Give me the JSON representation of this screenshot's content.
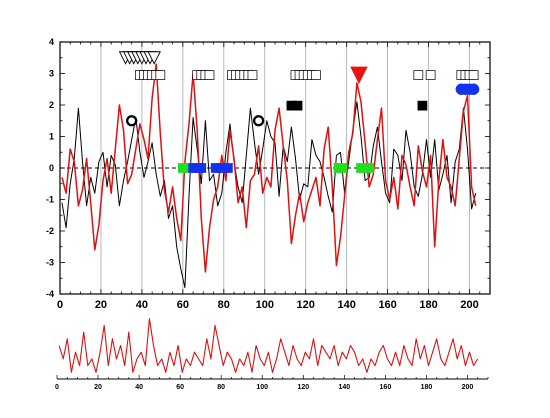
{
  "chart_data": [
    {
      "type": "line",
      "xlim": [
        0,
        210
      ],
      "ylim": [
        -4,
        4
      ],
      "x_ticks": [
        0,
        20,
        40,
        60,
        80,
        100,
        120,
        140,
        160,
        180,
        200
      ],
      "y_ticks": [
        -4,
        -3,
        -2,
        -1,
        0,
        1,
        2,
        3,
        4
      ],
      "vertical_gridlines_at": [
        20,
        40,
        60,
        80,
        100,
        120,
        140,
        160,
        180,
        200
      ],
      "zero_line": "dashed",
      "series": [
        {
          "color": "#000000",
          "x": [
            1,
            3,
            5,
            7,
            9,
            11,
            13,
            15,
            17,
            19,
            21,
            23,
            25,
            27,
            29,
            31,
            33,
            35,
            37,
            39,
            41,
            43,
            45,
            47,
            49,
            51,
            53,
            55,
            57,
            59,
            61,
            63,
            65,
            67,
            69,
            71,
            73,
            75,
            77,
            79,
            81,
            83,
            85,
            87,
            89,
            91,
            93,
            95,
            97,
            99,
            101,
            103,
            105,
            107,
            109,
            111,
            113,
            115,
            117,
            119,
            121,
            123,
            125,
            127,
            129,
            131,
            133,
            135,
            137,
            139,
            141,
            143,
            145,
            147,
            149,
            151,
            153,
            155,
            157,
            159,
            161,
            163,
            165,
            167,
            169,
            171,
            173,
            175,
            177,
            179,
            181,
            183,
            185,
            187,
            189,
            191,
            193,
            195,
            197,
            199,
            201,
            203
          ],
          "y": [
            -1.1,
            -1.9,
            -0.5,
            0.3,
            1.9,
            0.2,
            -1.2,
            -0.3,
            -0.8,
            0.2,
            0.5,
            -0.6,
            0.4,
            0.1,
            -1.2,
            -0.4,
            0.2,
            0.9,
            1.6,
            0.5,
            -0.3,
            0.2,
            0.8,
            -0.2,
            -0.9,
            -0.4,
            -1.6,
            -1.2,
            -2.5,
            -3.2,
            -3.8,
            -0.9,
            1.6,
            0.6,
            -0.5,
            1.5,
            -0.4,
            -0.2,
            -1.2,
            -0.8,
            0.5,
            1.4,
            0.2,
            -0.6,
            -1.1,
            0.4,
            1.9,
            0.8,
            -0.2,
            0.6,
            1.5,
            1.0,
            0.8,
            -0.9,
            0.7,
            0.2,
            1.3,
            0.3,
            -1.0,
            -0.5,
            -0.6,
            0.9,
            0.4,
            0.2,
            -0.3,
            -0.9,
            -1.4,
            0.4,
            0.5,
            -0.8,
            0.2,
            1.2,
            2.1,
            1.0,
            -0.4,
            -0.3,
            0.7,
            1.3,
            0.2,
            -0.8,
            -1.1,
            0.6,
            0.4,
            -0.4,
            1.2,
            0.5,
            -0.6,
            -0.9,
            -0.2,
            0.9,
            -0.3,
            0.9,
            -0.7,
            -0.2,
            0.4,
            -1.1,
            0.2,
            0.6,
            1.9,
            0.6,
            -1.3,
            -0.8
          ]
        },
        {
          "color": "#dd1111",
          "x": [
            1,
            3,
            5,
            7,
            9,
            11,
            13,
            15,
            17,
            19,
            21,
            23,
            25,
            27,
            29,
            31,
            33,
            35,
            37,
            39,
            41,
            43,
            45,
            47,
            49,
            51,
            53,
            55,
            57,
            59,
            61,
            63,
            65,
            67,
            69,
            71,
            73,
            75,
            77,
            79,
            81,
            83,
            85,
            87,
            89,
            91,
            93,
            95,
            97,
            99,
            101,
            103,
            105,
            107,
            109,
            111,
            113,
            115,
            117,
            119,
            121,
            123,
            125,
            127,
            129,
            131,
            133,
            135,
            137,
            139,
            141,
            143,
            145,
            147,
            149,
            151,
            153,
            155,
            157,
            159,
            161,
            163,
            165,
            167,
            169,
            171,
            173,
            175,
            177,
            179,
            181,
            183,
            185,
            187,
            189,
            191,
            193,
            195,
            197,
            199,
            201,
            203
          ],
          "y": [
            -0.3,
            -0.8,
            0.6,
            0.2,
            -1.2,
            -0.7,
            0.3,
            -1.1,
            -2.6,
            -1.8,
            -0.4,
            0.3,
            -0.8,
            0.6,
            2.0,
            1.2,
            -0.5,
            -0.2,
            0.6,
            1.4,
            0.9,
            0.3,
            2.2,
            3.3,
            1.1,
            -0.7,
            -1.4,
            -0.6,
            -1.6,
            -2.3,
            0.2,
            1.4,
            3.0,
            1.2,
            -1.6,
            -3.3,
            -1.9,
            -1.0,
            -0.6,
            0.4,
            -0.4,
            1.2,
            0.3,
            -1.1,
            -0.6,
            -1.9,
            -0.4,
            -0.2,
            0.7,
            -0.8,
            -0.3,
            -0.6,
            1.2,
            1.9,
            0.7,
            -0.4,
            -2.4,
            -1.5,
            -0.8,
            -1.7,
            -1.1,
            -0.7,
            -0.3,
            -1.2,
            0.6,
            1.3,
            -0.6,
            -3.1,
            -2.2,
            -0.9,
            0.5,
            1.1,
            2.7,
            2.1,
            0.8,
            -0.6,
            -0.2,
            0.9,
            1.9,
            -0.4,
            -1.0,
            -0.3,
            -1.3,
            0.4,
            0.1,
            -0.6,
            -1.2,
            0.7,
            -0.1,
            -0.6,
            0.4,
            -2.5,
            -0.4,
            0.9,
            -0.3,
            -0.6,
            -1.2,
            0.3,
            1.8,
            2.3,
            -0.6,
            -1.2
          ]
        }
      ],
      "markers": [
        {
          "shape": "triangle-down",
          "color": "#000000",
          "filled": false,
          "x": [
            32,
            34,
            36,
            38,
            40,
            42,
            44,
            46
          ],
          "y": 3.5
        },
        {
          "shape": "square",
          "color": "#000000",
          "filled": false,
          "x": [
            39,
            41,
            43,
            45,
            47,
            49
          ],
          "y": 2.95
        },
        {
          "shape": "square",
          "color": "#000000",
          "filled": false,
          "x": [
            67,
            69,
            71,
            73
          ],
          "y": 2.95
        },
        {
          "shape": "square",
          "color": "#000000",
          "filled": false,
          "x": [
            84,
            86,
            88,
            90,
            92,
            94
          ],
          "y": 2.95
        },
        {
          "shape": "square",
          "color": "#000000",
          "filled": false,
          "x": [
            115,
            117,
            119,
            121,
            123,
            125
          ],
          "y": 2.95
        },
        {
          "shape": "square",
          "color": "#000000",
          "filled": false,
          "x": [
            175,
            181
          ],
          "y": 2.95
        },
        {
          "shape": "square",
          "color": "#000000",
          "filled": false,
          "x": [
            196,
            198,
            200,
            202
          ],
          "y": 2.95
        },
        {
          "shape": "triangle-down",
          "color": "#ee1111",
          "filled": true,
          "x": [
            146
          ],
          "y": 2.95
        },
        {
          "shape": "square",
          "color": "#000000",
          "filled": true,
          "x": [
            113,
            116
          ],
          "y": 1.98
        },
        {
          "shape": "square",
          "color": "#000000",
          "filled": true,
          "x": [
            177
          ],
          "y": 1.98
        },
        {
          "shape": "circle",
          "color": "#000000",
          "filled": false,
          "x": [
            35,
            97
          ],
          "y": 1.5
        },
        {
          "shape": "circle",
          "color": "#1133ee",
          "filled": true,
          "x": [
            196,
            198,
            200,
            202
          ],
          "y": 2.5
        },
        {
          "shape": "square",
          "color": "#22dd22",
          "filled": true,
          "x": [
            60,
            62,
            136,
            138,
            147,
            149,
            151
          ],
          "y": 0
        },
        {
          "shape": "square",
          "color": "#1133ee",
          "filled": true,
          "x": [
            65,
            67,
            69,
            76,
            78,
            80,
            82
          ],
          "y": 0
        }
      ]
    },
    {
      "type": "line",
      "xlim": [
        0,
        210
      ],
      "x_ticks": [
        0,
        20,
        40,
        60,
        80,
        100,
        120,
        140,
        160,
        180,
        200
      ],
      "series": [
        {
          "color": "#dd1111",
          "x": [
            1,
            3,
            5,
            7,
            9,
            11,
            13,
            15,
            17,
            19,
            21,
            23,
            25,
            27,
            29,
            31,
            33,
            35,
            37,
            39,
            41,
            43,
            45,
            47,
            49,
            51,
            53,
            55,
            57,
            59,
            61,
            63,
            65,
            67,
            69,
            71,
            73,
            75,
            77,
            79,
            81,
            83,
            85,
            87,
            89,
            91,
            93,
            95,
            97,
            99,
            101,
            103,
            105,
            107,
            109,
            111,
            113,
            115,
            117,
            119,
            121,
            123,
            125,
            127,
            129,
            131,
            133,
            135,
            137,
            139,
            141,
            143,
            145,
            147,
            149,
            151,
            153,
            155,
            157,
            159,
            161,
            163,
            165,
            167,
            169,
            171,
            173,
            175,
            177,
            179,
            181,
            183,
            185,
            187,
            189,
            191,
            193,
            195,
            197,
            199,
            201,
            203,
            205
          ],
          "y": [
            0.5,
            0.3,
            0.6,
            0.1,
            0.4,
            0.2,
            0.7,
            0.2,
            0.3,
            0.1,
            0.4,
            0.8,
            0.2,
            0.6,
            0.3,
            0.5,
            0.2,
            0.7,
            0.1,
            0.3,
            0.4,
            0.2,
            0.9,
            0.5,
            0.2,
            0.3,
            0.1,
            0.4,
            0.2,
            0.5,
            0.1,
            0.3,
            0.2,
            0.4,
            0.3,
            0.2,
            0.6,
            0.3,
            0.8,
            0.5,
            0.2,
            0.4,
            0.3,
            0.1,
            0.3,
            0.2,
            0.4,
            0.1,
            0.5,
            0.3,
            0.2,
            0.4,
            0.1,
            0.3,
            0.6,
            0.4,
            0.2,
            0.5,
            0.3,
            0.2,
            0.4,
            0.3,
            0.6,
            0.2,
            0.5,
            0.4,
            0.3,
            0.5,
            0.2,
            0.4,
            0.3,
            0.5,
            0.4,
            0.2,
            0.3,
            0.1,
            0.3,
            0.2,
            0.4,
            0.5,
            0.3,
            0.2,
            0.4,
            0.2,
            0.5,
            0.3,
            0.2,
            0.6,
            0.3,
            0.5,
            0.2,
            0.4,
            0.6,
            0.3,
            0.2,
            0.4,
            0.6,
            0.3,
            0.5,
            0.2,
            0.4,
            0.2,
            0.3
          ]
        }
      ]
    }
  ]
}
